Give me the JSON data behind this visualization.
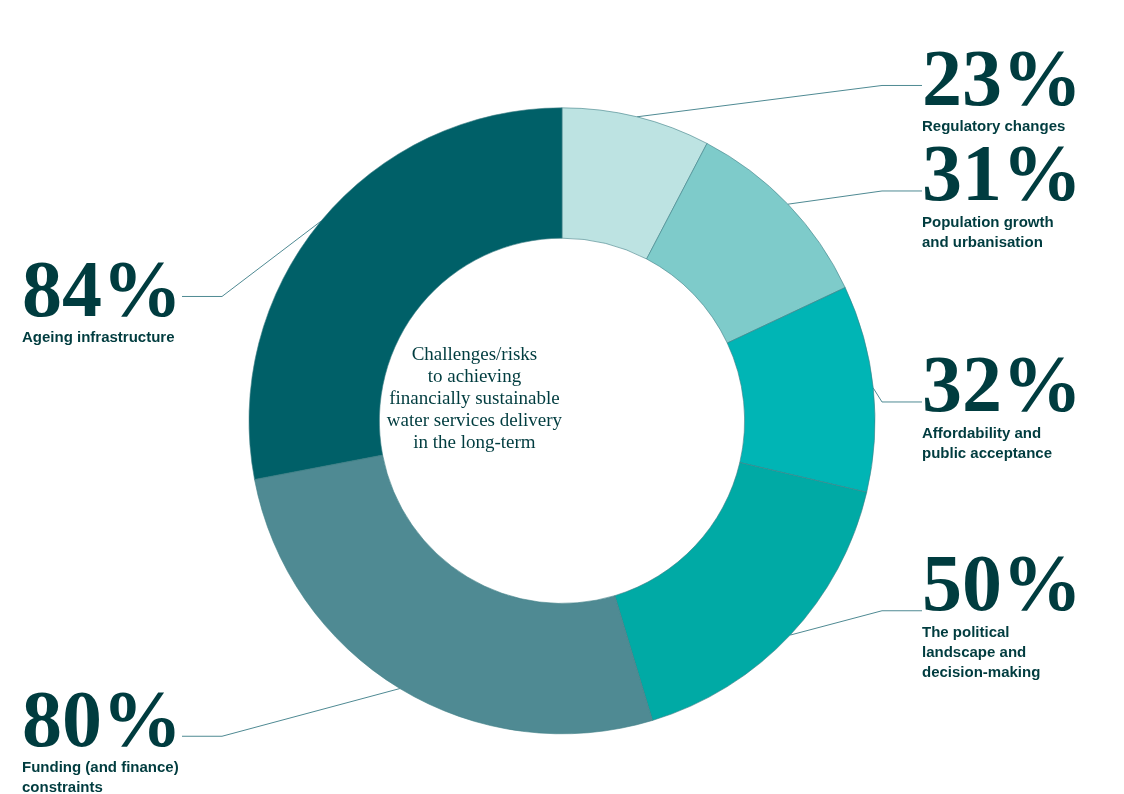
{
  "chart_data": {
    "type": "donut",
    "title": "Challenges/risks\nto achieving\nfinancially sustainable\nwater services delivery\nin the long-term",
    "categories": [
      "Regulatory changes",
      "Population growth\nand urbanisation",
      "Affordability and\npublic acceptance",
      "The political\nlandscape and\ndecision-making",
      "Funding (and finance)\nconstraints",
      "Ageing infrastructure"
    ],
    "values": [
      23,
      31,
      32,
      50,
      80,
      84
    ],
    "value_labels": [
      "23%",
      "31%",
      "32%",
      "50%",
      "80%",
      "84%"
    ],
    "colors": [
      "#bde3e2",
      "#7ecbca",
      "#00b5b5",
      "#00aaa5",
      "#4f8a93",
      "#006068"
    ],
    "legend": false
  }
}
